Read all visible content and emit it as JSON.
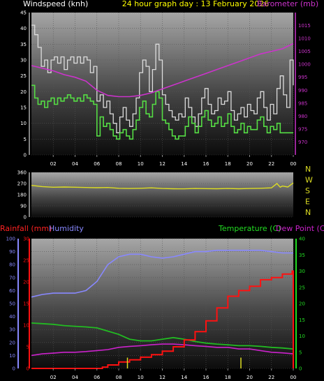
{
  "header": {
    "title": "24 hour graph day : 13 February 2026"
  },
  "colors": {
    "background": "#000000",
    "panel_top": "#a0a0a0",
    "panel_bottom": "#101010",
    "wind_avg": "#55dd44",
    "wind_gust": "#dddddd",
    "barometer": "#cc33cc",
    "direction": "#dddd22",
    "rain": "#ff1111",
    "humidity": "#8888ff",
    "temperature": "#22bb22",
    "dewpoint": "#cc22cc",
    "grid": "#555555",
    "tick_text": "#ffffff",
    "title_text": "#ffff00"
  },
  "chart_data": [
    {
      "id": "wind",
      "type": "line",
      "title": "",
      "ylabel": "Windspeed (knh)",
      "y2label": "Barometer (mb)",
      "x_ticks": [
        "02",
        "04",
        "06",
        "08",
        "10",
        "12",
        "14",
        "16",
        "18",
        "20",
        "22",
        "00"
      ],
      "ylim": [
        0,
        45
      ],
      "y_ticks": [
        0,
        5,
        10,
        15,
        20,
        25,
        30,
        35,
        40,
        45
      ],
      "y2lim": [
        965,
        1020
      ],
      "y2_ticks": [
        970,
        975,
        980,
        985,
        990,
        995,
        1000,
        1005,
        1010,
        1015
      ],
      "grid": true,
      "series": [
        {
          "name": "",
          "role": "gust",
          "x_hours": [
            0,
            0.3,
            0.6,
            0.9,
            1.2,
            1.5,
            1.8,
            2.1,
            2.4,
            2.7,
            3,
            3.3,
            3.6,
            3.9,
            4.2,
            4.5,
            4.8,
            5.1,
            5.4,
            5.7,
            6,
            6.3,
            6.6,
            6.9,
            7.2,
            7.5,
            7.8,
            8.1,
            8.4,
            8.7,
            9,
            9.3,
            9.6,
            9.9,
            10.2,
            10.5,
            10.8,
            11.1,
            11.4,
            11.7,
            12,
            12.3,
            12.6,
            12.9,
            13.2,
            13.5,
            13.8,
            14.1,
            14.4,
            14.7,
            15,
            15.3,
            15.6,
            15.9,
            16.2,
            16.5,
            16.8,
            17.1,
            17.4,
            17.7,
            18,
            18.3,
            18.6,
            18.9,
            19.2,
            19.5,
            19.8,
            20.1,
            20.4,
            20.7,
            21,
            21.3,
            21.6,
            21.9,
            22.2,
            22.5,
            22.8,
            23.1,
            23.4,
            23.7,
            24
          ],
          "values": [
            41,
            38,
            34,
            28,
            30,
            26,
            30,
            31,
            29,
            31,
            27,
            30,
            31,
            29,
            31,
            29,
            31,
            30,
            26,
            28,
            17,
            19,
            15,
            17,
            13,
            10,
            7,
            12,
            15,
            11,
            9,
            13,
            18,
            26,
            30,
            28,
            20,
            27,
            35,
            30,
            19,
            16,
            14,
            12,
            11,
            13,
            12,
            18,
            15,
            12,
            9,
            13,
            18,
            21,
            16,
            13,
            14,
            18,
            16,
            17,
            20,
            14,
            11,
            13,
            15,
            12,
            16,
            14,
            13,
            18,
            20,
            15,
            11,
            16,
            13,
            21,
            25,
            19,
            15,
            30,
            22
          ]
        },
        {
          "name": "",
          "role": "average",
          "x_hours": [
            0,
            0.3,
            0.6,
            0.9,
            1.2,
            1.5,
            1.8,
            2.1,
            2.4,
            2.7,
            3,
            3.3,
            3.6,
            3.9,
            4.2,
            4.5,
            4.8,
            5.1,
            5.4,
            5.7,
            6,
            6.3,
            6.6,
            6.9,
            7.2,
            7.5,
            7.8,
            8.1,
            8.4,
            8.7,
            9,
            9.3,
            9.6,
            9.9,
            10.2,
            10.5,
            10.8,
            11.1,
            11.4,
            11.7,
            12,
            12.3,
            12.6,
            12.9,
            13.2,
            13.5,
            13.8,
            14.1,
            14.4,
            14.7,
            15,
            15.3,
            15.6,
            15.9,
            16.2,
            16.5,
            16.8,
            17.1,
            17.4,
            17.7,
            18,
            18.3,
            18.6,
            18.9,
            19.2,
            19.5,
            19.8,
            20.1,
            20.4,
            20.7,
            21,
            21.3,
            21.6,
            21.9,
            22.2,
            22.5,
            22.8,
            23.1,
            23.4,
            23.7,
            24
          ],
          "values": [
            22,
            18,
            16,
            17,
            15,
            17,
            18,
            16,
            18,
            17,
            18,
            19,
            18,
            17,
            18,
            17,
            19,
            18,
            17,
            16,
            6,
            12,
            9,
            10,
            8,
            6,
            5,
            7,
            8,
            6,
            5,
            8,
            11,
            15,
            17,
            13,
            12,
            16,
            20,
            18,
            11,
            10,
            8,
            6,
            5,
            6,
            6,
            9,
            12,
            10,
            7,
            9,
            12,
            14,
            11,
            9,
            10,
            12,
            9,
            10,
            13,
            9,
            7,
            8,
            10,
            7,
            9,
            8,
            8,
            11,
            12,
            9,
            7,
            9,
            8,
            10,
            7,
            7,
            7,
            7,
            7
          ]
        },
        {
          "name": "",
          "role": "barometer",
          "axis": "y2",
          "x_hours": [
            0,
            1,
            2,
            3,
            4,
            5,
            6,
            7,
            8,
            9,
            10,
            11,
            12,
            13,
            14,
            15,
            16,
            17,
            18,
            19,
            20,
            21,
            22,
            23,
            24
          ],
          "values": [
            999.5,
            998.5,
            997.5,
            996,
            995,
            993.5,
            990,
            988,
            987.5,
            987.5,
            988,
            989,
            990.5,
            992,
            993.5,
            995,
            996.5,
            998,
            999.5,
            1001,
            1002.5,
            1004,
            1005,
            1006,
            1008
          ]
        }
      ]
    },
    {
      "id": "direction",
      "type": "line",
      "title": "",
      "ylim": [
        0,
        360
      ],
      "y_ticks": [
        0,
        90,
        180,
        270,
        360
      ],
      "compass_labels": [
        "N",
        "W",
        "S",
        "E",
        "N"
      ],
      "grid": true,
      "series": [
        {
          "name": "",
          "role": "direction",
          "x_hours": [
            0,
            1,
            2,
            3,
            4,
            5,
            6,
            7,
            8,
            9,
            10,
            11,
            12,
            13,
            14,
            15,
            16,
            17,
            18,
            19,
            20,
            21,
            22,
            22.5,
            22.8,
            23,
            23.5,
            24
          ],
          "values": [
            255,
            245,
            240,
            242,
            240,
            238,
            236,
            238,
            232,
            230,
            232,
            235,
            230,
            228,
            227,
            230,
            229,
            228,
            230,
            228,
            230,
            232,
            235,
            270,
            240,
            250,
            242,
            275
          ]
        }
      ]
    },
    {
      "id": "climate",
      "type": "line",
      "title": "",
      "ylabel_left": "Rainfall (mm)",
      "ylabel_humidity": "Humidity",
      "ylabel_right": "Temperature (C)",
      "ylabel_dew": "Dew Point (C)",
      "x_ticks": [
        "02",
        "04",
        "06",
        "08",
        "10",
        "12",
        "14",
        "16",
        "18",
        "20",
        "22",
        "00"
      ],
      "rain_ylim": [
        0,
        30
      ],
      "rain_ticks": [
        0,
        5,
        10,
        15,
        20,
        25,
        30
      ],
      "humidity_ylim": [
        0,
        100
      ],
      "humidity_ticks": [
        0,
        10,
        20,
        30,
        40,
        50,
        60,
        70,
        80,
        90,
        100
      ],
      "temp_ylim": [
        0,
        40
      ],
      "temp_ticks": [
        0,
        5,
        10,
        15,
        20,
        25,
        30,
        35,
        40
      ],
      "grid": true,
      "series": [
        {
          "name": "",
          "role": "humidity",
          "axis": "humidity",
          "x_hours": [
            0,
            1,
            2,
            3,
            4,
            5,
            6,
            7,
            8,
            9,
            10,
            11,
            12,
            13,
            14,
            15,
            16,
            17,
            18,
            19,
            20,
            21,
            22,
            23,
            24
          ],
          "values": [
            55,
            57,
            58,
            58,
            58,
            60,
            67,
            80,
            86,
            88,
            88,
            86,
            85,
            86,
            88,
            90,
            90,
            91,
            91,
            91,
            91,
            91,
            90,
            89,
            89
          ]
        },
        {
          "name": "",
          "role": "temperature",
          "axis": "temp",
          "x_hours": [
            0,
            1,
            2,
            3,
            4,
            5,
            6,
            7,
            8,
            9,
            10,
            11,
            12,
            13,
            14,
            15,
            16,
            17,
            18,
            19,
            20,
            21,
            22,
            23,
            24
          ],
          "values": [
            14,
            13.8,
            13.6,
            13.2,
            13,
            12.8,
            12.5,
            11.5,
            10.5,
            9,
            8.5,
            8.5,
            9,
            9.5,
            9,
            8.3,
            7.8,
            7.5,
            7.3,
            7,
            7,
            6.8,
            6.5,
            6.3,
            6
          ]
        },
        {
          "name": "",
          "role": "dewpoint",
          "axis": "temp",
          "x_hours": [
            0,
            1,
            2,
            3,
            4,
            5,
            6,
            7,
            8,
            9,
            10,
            11,
            12,
            13,
            14,
            15,
            16,
            17,
            18,
            19,
            20,
            21,
            22,
            23,
            24
          ],
          "values": [
            4,
            4.5,
            4.7,
            5,
            5,
            5.2,
            5.5,
            5.8,
            6.5,
            6.8,
            7,
            7.3,
            7.5,
            7.5,
            7.3,
            7,
            6.8,
            6.5,
            6.5,
            6,
            6,
            5.5,
            5,
            4.8,
            4.5
          ]
        },
        {
          "name": "",
          "role": "rain",
          "axis": "rain",
          "x_hours": [
            0,
            1,
            2,
            3,
            4,
            5,
            6,
            6.5,
            7,
            8,
            9,
            10,
            11,
            12,
            13,
            14,
            15,
            16,
            17,
            18,
            19,
            20,
            21,
            22,
            23,
            23.9,
            24
          ],
          "values": [
            0,
            0,
            0,
            0,
            0,
            0,
            0,
            0.3,
            0.8,
            1.5,
            2,
            2.6,
            3.2,
            4,
            5,
            6.6,
            8.5,
            11,
            14,
            16.7,
            18,
            19,
            20.5,
            21,
            21.8,
            22.5,
            0
          ]
        },
        {
          "name": "",
          "role": "rain_rate",
          "axis": "rain",
          "bars": [
            [
              8.8,
              2.5
            ],
            [
              19.2,
              2.5
            ]
          ]
        }
      ]
    }
  ]
}
